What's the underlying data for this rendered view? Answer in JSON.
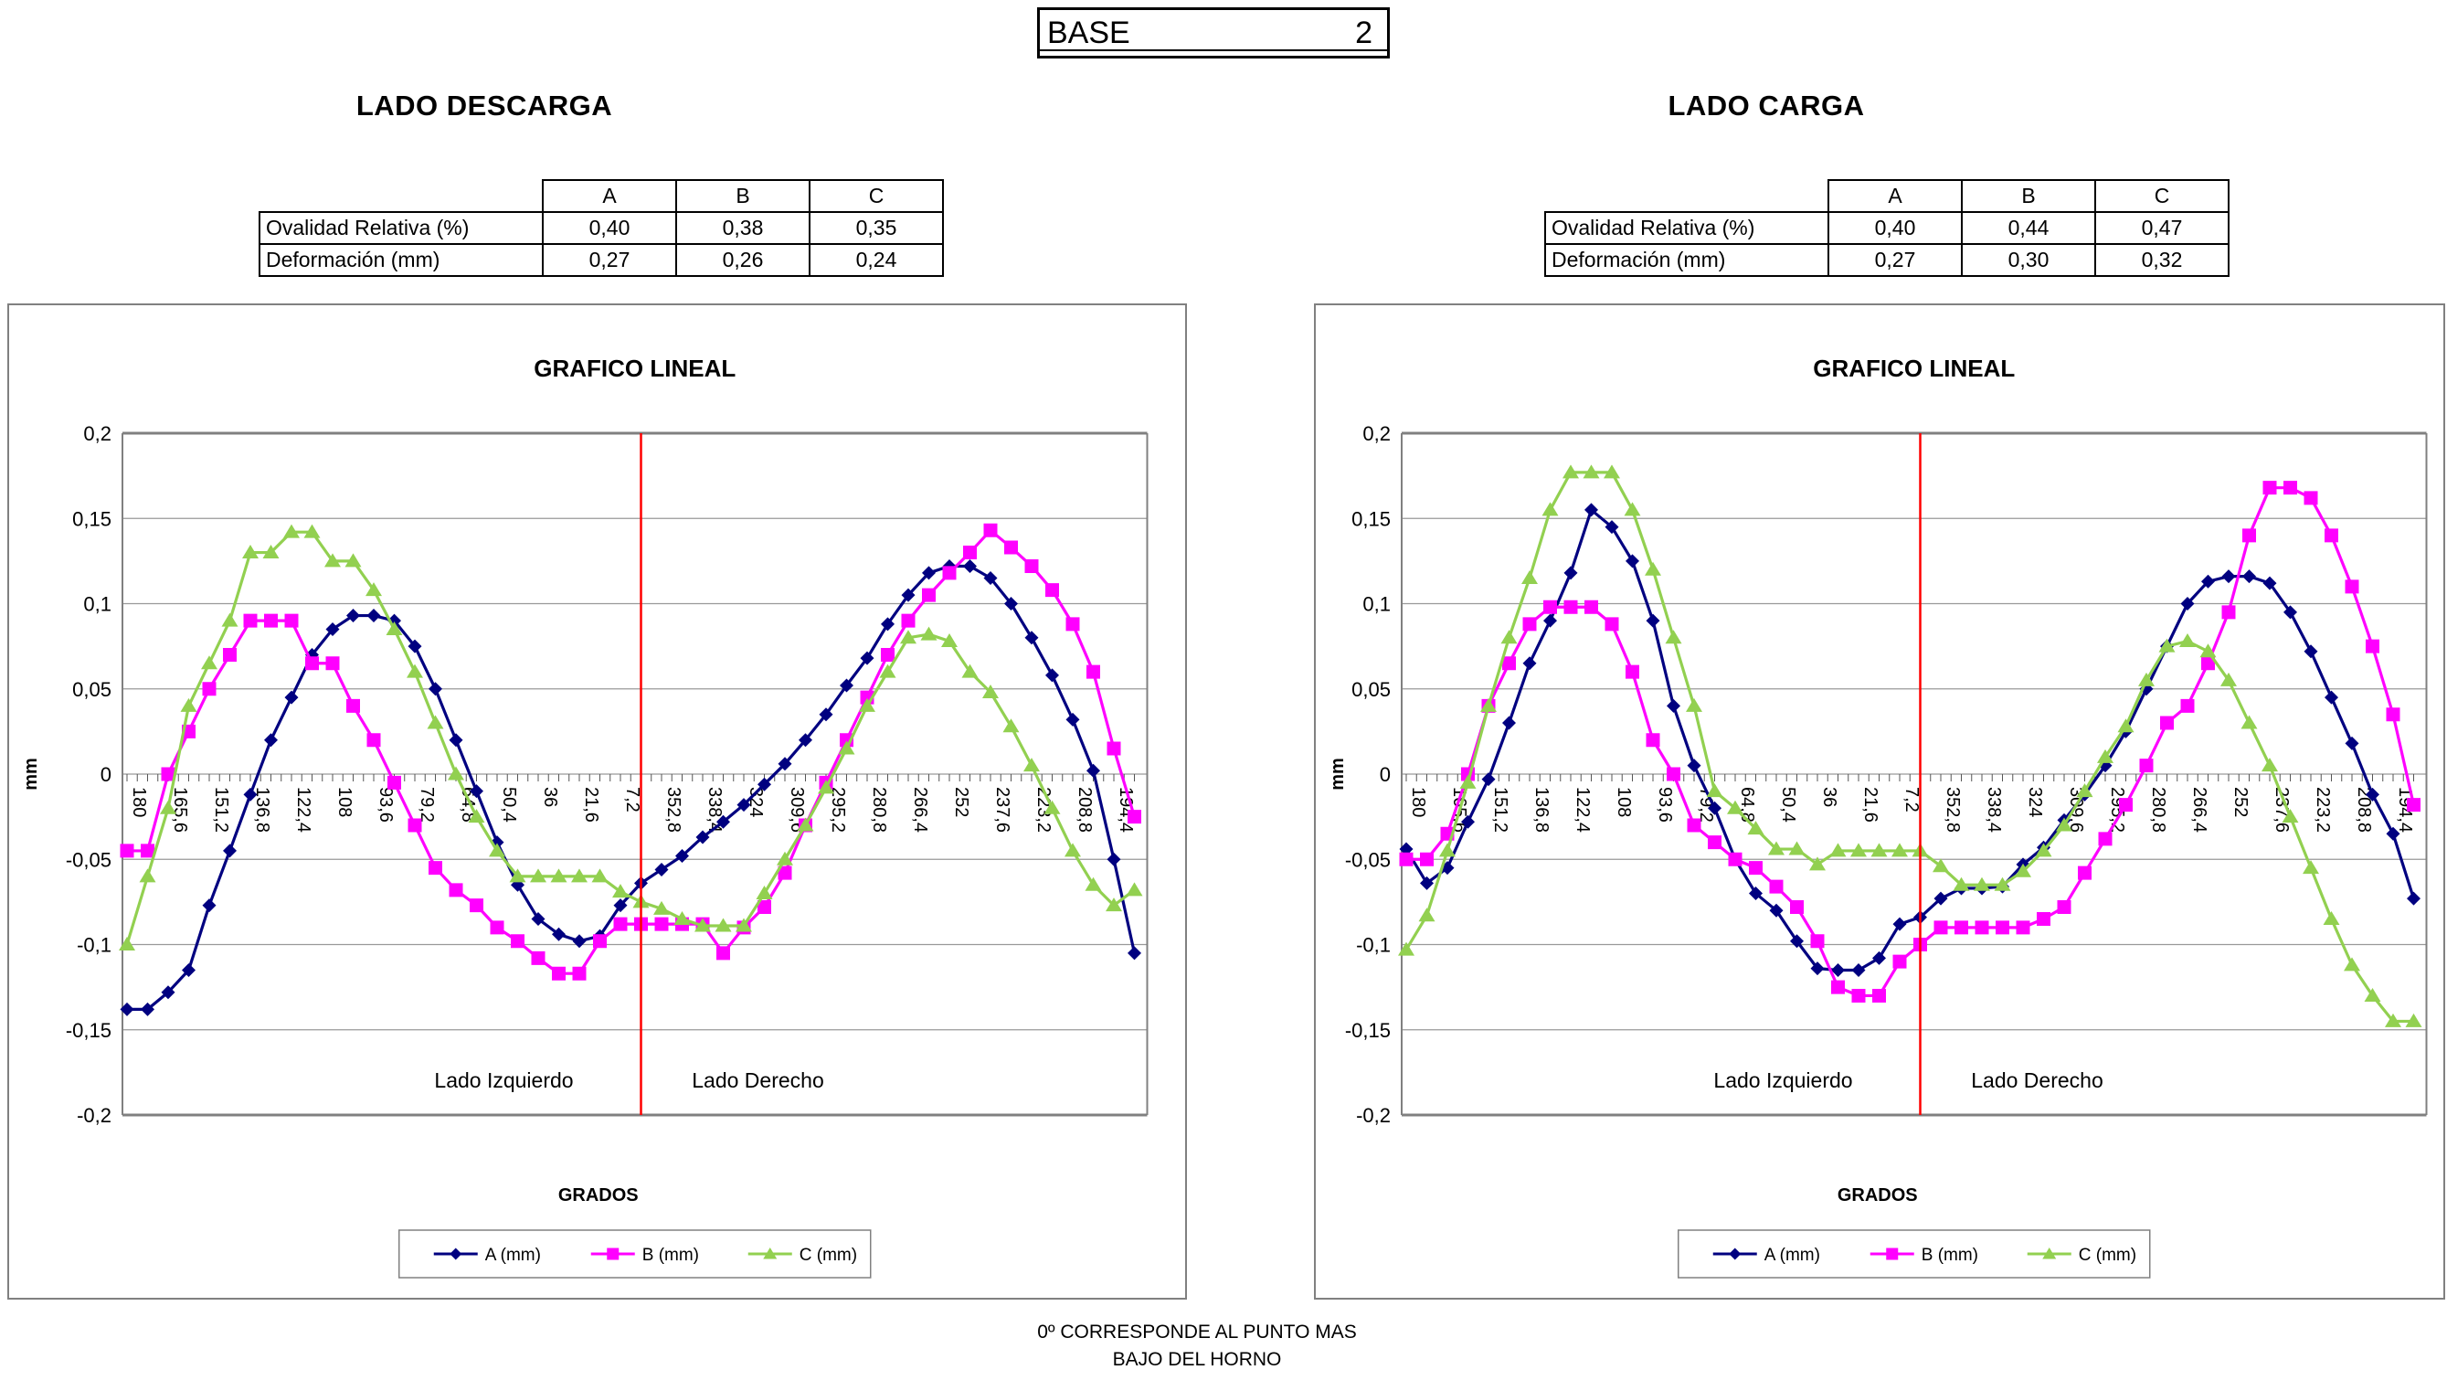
{
  "page": {
    "base_box": {
      "label": "BASE",
      "number": "2"
    },
    "note_line1": "0º CORRESPONDE AL PUNTO MAS",
    "note_line2": "BAJO DEL HORNO"
  },
  "sections": [
    {
      "title": "LADO DESCARGA",
      "table": {
        "col_headers": [
          "A",
          "B",
          "C"
        ],
        "rows": [
          {
            "label": "Ovalidad Relativa (%)",
            "values": [
              "0,40",
              "0,38",
              "0,35"
            ]
          },
          {
            "label": "Deformación (mm)",
            "values": [
              "0,27",
              "0,26",
              "0,24"
            ]
          }
        ]
      }
    },
    {
      "title": "LADO CARGA",
      "table": {
        "col_headers": [
          "A",
          "B",
          "C"
        ],
        "rows": [
          {
            "label": "Ovalidad Relativa (%)",
            "values": [
              "0,40",
              "0,44",
              "0,47"
            ]
          },
          {
            "label": "Deformación (mm)",
            "values": [
              "0,27",
              "0,30",
              "0,32"
            ]
          }
        ]
      }
    }
  ],
  "chart_data": [
    {
      "type": "line",
      "title": "GRAFICO LINEAL",
      "xlabel": "GRADOS",
      "ylabel": "mm",
      "ylim": [
        -0.2,
        0.2
      ],
      "ytick_step": 0.05,
      "grid": true,
      "legend_position": "bottom",
      "ytick_labels": [
        "0,2",
        "0,15",
        "0,1",
        "0,05",
        "0",
        "-0,05",
        "-0,1",
        "-0,15",
        "-0,2"
      ],
      "x_tick_labels": [
        "180",
        "165,6",
        "151,2",
        "136,8",
        "122,4",
        "108",
        "93,6",
        "79,2",
        "64,8",
        "50,4",
        "36",
        "21,6",
        "7,2",
        "352,8",
        "338,4",
        "324",
        "309,6",
        "295,2",
        "280,8",
        "266,4",
        "252",
        "237,6",
        "223,2",
        "208,8",
        "194,4"
      ],
      "x_degrees": [
        180,
        172.8,
        165.6,
        158.4,
        151.2,
        144,
        136.8,
        129.6,
        122.4,
        115.2,
        108,
        100.8,
        93.6,
        86.4,
        79.2,
        72,
        64.8,
        57.6,
        50.4,
        43.2,
        36,
        28.8,
        21.6,
        14.4,
        7.2,
        0,
        352.8,
        345.6,
        338.4,
        331.2,
        324,
        316.8,
        309.6,
        302.4,
        295.2,
        288,
        280.8,
        273.6,
        266.4,
        259.2,
        252,
        244.8,
        237.6,
        230.4,
        223.2,
        216,
        208.8,
        201.6,
        194.4,
        187.2
      ],
      "annotations": {
        "left": "Lado Izquierdo",
        "right": "Lado Derecho"
      },
      "separator_color": "#FF0000",
      "series": [
        {
          "name": "A (mm)",
          "color": "#000080",
          "marker": "diamond",
          "values": [
            -0.138,
            -0.138,
            -0.128,
            -0.115,
            -0.077,
            -0.045,
            -0.012,
            0.02,
            0.045,
            0.07,
            0.085,
            0.093,
            0.093,
            0.09,
            0.075,
            0.05,
            0.02,
            -0.01,
            -0.04,
            -0.065,
            -0.085,
            -0.094,
            -0.098,
            -0.095,
            -0.077,
            -0.064,
            -0.056,
            -0.048,
            -0.037,
            -0.028,
            -0.018,
            -0.006,
            0.006,
            0.02,
            0.035,
            0.052,
            0.068,
            0.088,
            0.105,
            0.118,
            0.122,
            0.122,
            0.115,
            0.1,
            0.08,
            0.058,
            0.032,
            0.002,
            -0.05,
            -0.105
          ]
        },
        {
          "name": "B (mm)",
          "color": "#FF00FF",
          "marker": "square",
          "values": [
            -0.045,
            -0.045,
            0,
            0.025,
            0.05,
            0.07,
            0.09,
            0.09,
            0.09,
            0.065,
            0.065,
            0.04,
            0.02,
            -0.005,
            -0.03,
            -0.055,
            -0.068,
            -0.077,
            -0.09,
            -0.098,
            -0.108,
            -0.117,
            -0.117,
            -0.098,
            -0.088,
            -0.088,
            -0.088,
            -0.088,
            -0.088,
            -0.105,
            -0.09,
            -0.078,
            -0.058,
            -0.03,
            -0.005,
            0.02,
            0.045,
            0.07,
            0.09,
            0.105,
            0.118,
            0.13,
            0.143,
            0.133,
            0.122,
            0.108,
            0.088,
            0.06,
            0.015,
            -0.025
          ]
        },
        {
          "name": "C (mm)",
          "color": "#92D050",
          "marker": "triangle",
          "values": [
            -0.1,
            -0.06,
            -0.02,
            0.04,
            0.065,
            0.09,
            0.13,
            0.13,
            0.142,
            0.142,
            0.125,
            0.125,
            0.108,
            0.085,
            0.06,
            0.03,
            0,
            -0.025,
            -0.045,
            -0.06,
            -0.06,
            -0.06,
            -0.06,
            -0.06,
            -0.069,
            -0.075,
            -0.079,
            -0.085,
            -0.089,
            -0.089,
            -0.089,
            -0.07,
            -0.05,
            -0.03,
            -0.008,
            0.015,
            0.04,
            0.06,
            0.08,
            0.082,
            0.078,
            0.06,
            0.048,
            0.028,
            0.005,
            -0.02,
            -0.045,
            -0.065,
            -0.077,
            -0.068
          ]
        }
      ]
    },
    {
      "type": "line",
      "title": "GRAFICO LINEAL",
      "xlabel": "GRADOS",
      "ylabel": "mm",
      "ylim": [
        -0.2,
        0.2
      ],
      "ytick_step": 0.05,
      "grid": true,
      "legend_position": "bottom",
      "ytick_labels": [
        "0,2",
        "0,15",
        "0,1",
        "0,05",
        "0",
        "-0,05",
        "-0,1",
        "-0,15",
        "-0,2"
      ],
      "x_tick_labels": [
        "180",
        "165,6",
        "151,2",
        "136,8",
        "122,4",
        "108",
        "93,6",
        "79,2",
        "64,8",
        "50,4",
        "36",
        "21,6",
        "7,2",
        "352,8",
        "338,4",
        "324",
        "309,6",
        "295,2",
        "280,8",
        "266,4",
        "252",
        "237,6",
        "223,2",
        "208,8",
        "194,4"
      ],
      "x_degrees": [
        180,
        172.8,
        165.6,
        158.4,
        151.2,
        144,
        136.8,
        129.6,
        122.4,
        115.2,
        108,
        100.8,
        93.6,
        86.4,
        79.2,
        72,
        64.8,
        57.6,
        50.4,
        43.2,
        36,
        28.8,
        21.6,
        14.4,
        7.2,
        0,
        352.8,
        345.6,
        338.4,
        331.2,
        324,
        316.8,
        309.6,
        302.4,
        295.2,
        288,
        280.8,
        273.6,
        266.4,
        259.2,
        252,
        244.8,
        237.6,
        230.4,
        223.2,
        216,
        208.8,
        201.6,
        194.4,
        187.2
      ],
      "annotations": {
        "left": "Lado Izquierdo",
        "right": "Lado Derecho"
      },
      "separator_color": "#FF0000",
      "series": [
        {
          "name": "A (mm)",
          "color": "#000080",
          "marker": "diamond",
          "values": [
            -0.044,
            -0.064,
            -0.055,
            -0.028,
            -0.003,
            0.03,
            0.065,
            0.09,
            0.118,
            0.155,
            0.145,
            0.125,
            0.09,
            0.04,
            0.005,
            -0.02,
            -0.05,
            -0.07,
            -0.08,
            -0.098,
            -0.114,
            -0.115,
            -0.115,
            -0.108,
            -0.088,
            -0.084,
            -0.073,
            -0.067,
            -0.067,
            -0.066,
            -0.053,
            -0.043,
            -0.027,
            -0.012,
            0.005,
            0.025,
            0.05,
            0.075,
            0.1,
            0.113,
            0.116,
            0.116,
            0.112,
            0.095,
            0.072,
            0.045,
            0.018,
            -0.012,
            -0.035,
            -0.073
          ]
        },
        {
          "name": "B (mm)",
          "color": "#FF00FF",
          "marker": "square",
          "values": [
            -0.05,
            -0.05,
            -0.035,
            0,
            0.04,
            0.065,
            0.088,
            0.098,
            0.098,
            0.098,
            0.088,
            0.06,
            0.02,
            0,
            -0.03,
            -0.04,
            -0.05,
            -0.055,
            -0.066,
            -0.078,
            -0.098,
            -0.125,
            -0.13,
            -0.13,
            -0.11,
            -0.1,
            -0.09,
            -0.09,
            -0.09,
            -0.09,
            -0.09,
            -0.085,
            -0.078,
            -0.058,
            -0.038,
            -0.018,
            0.005,
            0.03,
            0.04,
            0.065,
            0.095,
            0.14,
            0.168,
            0.168,
            0.162,
            0.14,
            0.11,
            0.075,
            0.035,
            -0.018
          ]
        },
        {
          "name": "C (mm)",
          "color": "#92D050",
          "marker": "triangle",
          "values": [
            -0.103,
            -0.083,
            -0.045,
            -0.005,
            0.04,
            0.08,
            0.115,
            0.155,
            0.177,
            0.177,
            0.177,
            0.155,
            0.12,
            0.08,
            0.04,
            -0.01,
            -0.02,
            -0.032,
            -0.044,
            -0.044,
            -0.053,
            -0.045,
            -0.045,
            -0.045,
            -0.045,
            -0.045,
            -0.054,
            -0.065,
            -0.065,
            -0.065,
            -0.057,
            -0.045,
            -0.03,
            -0.01,
            0.01,
            0.028,
            0.055,
            0.075,
            0.078,
            0.072,
            0.055,
            0.03,
            0.005,
            -0.025,
            -0.055,
            -0.085,
            -0.112,
            -0.13,
            -0.145,
            -0.145
          ]
        }
      ]
    }
  ]
}
